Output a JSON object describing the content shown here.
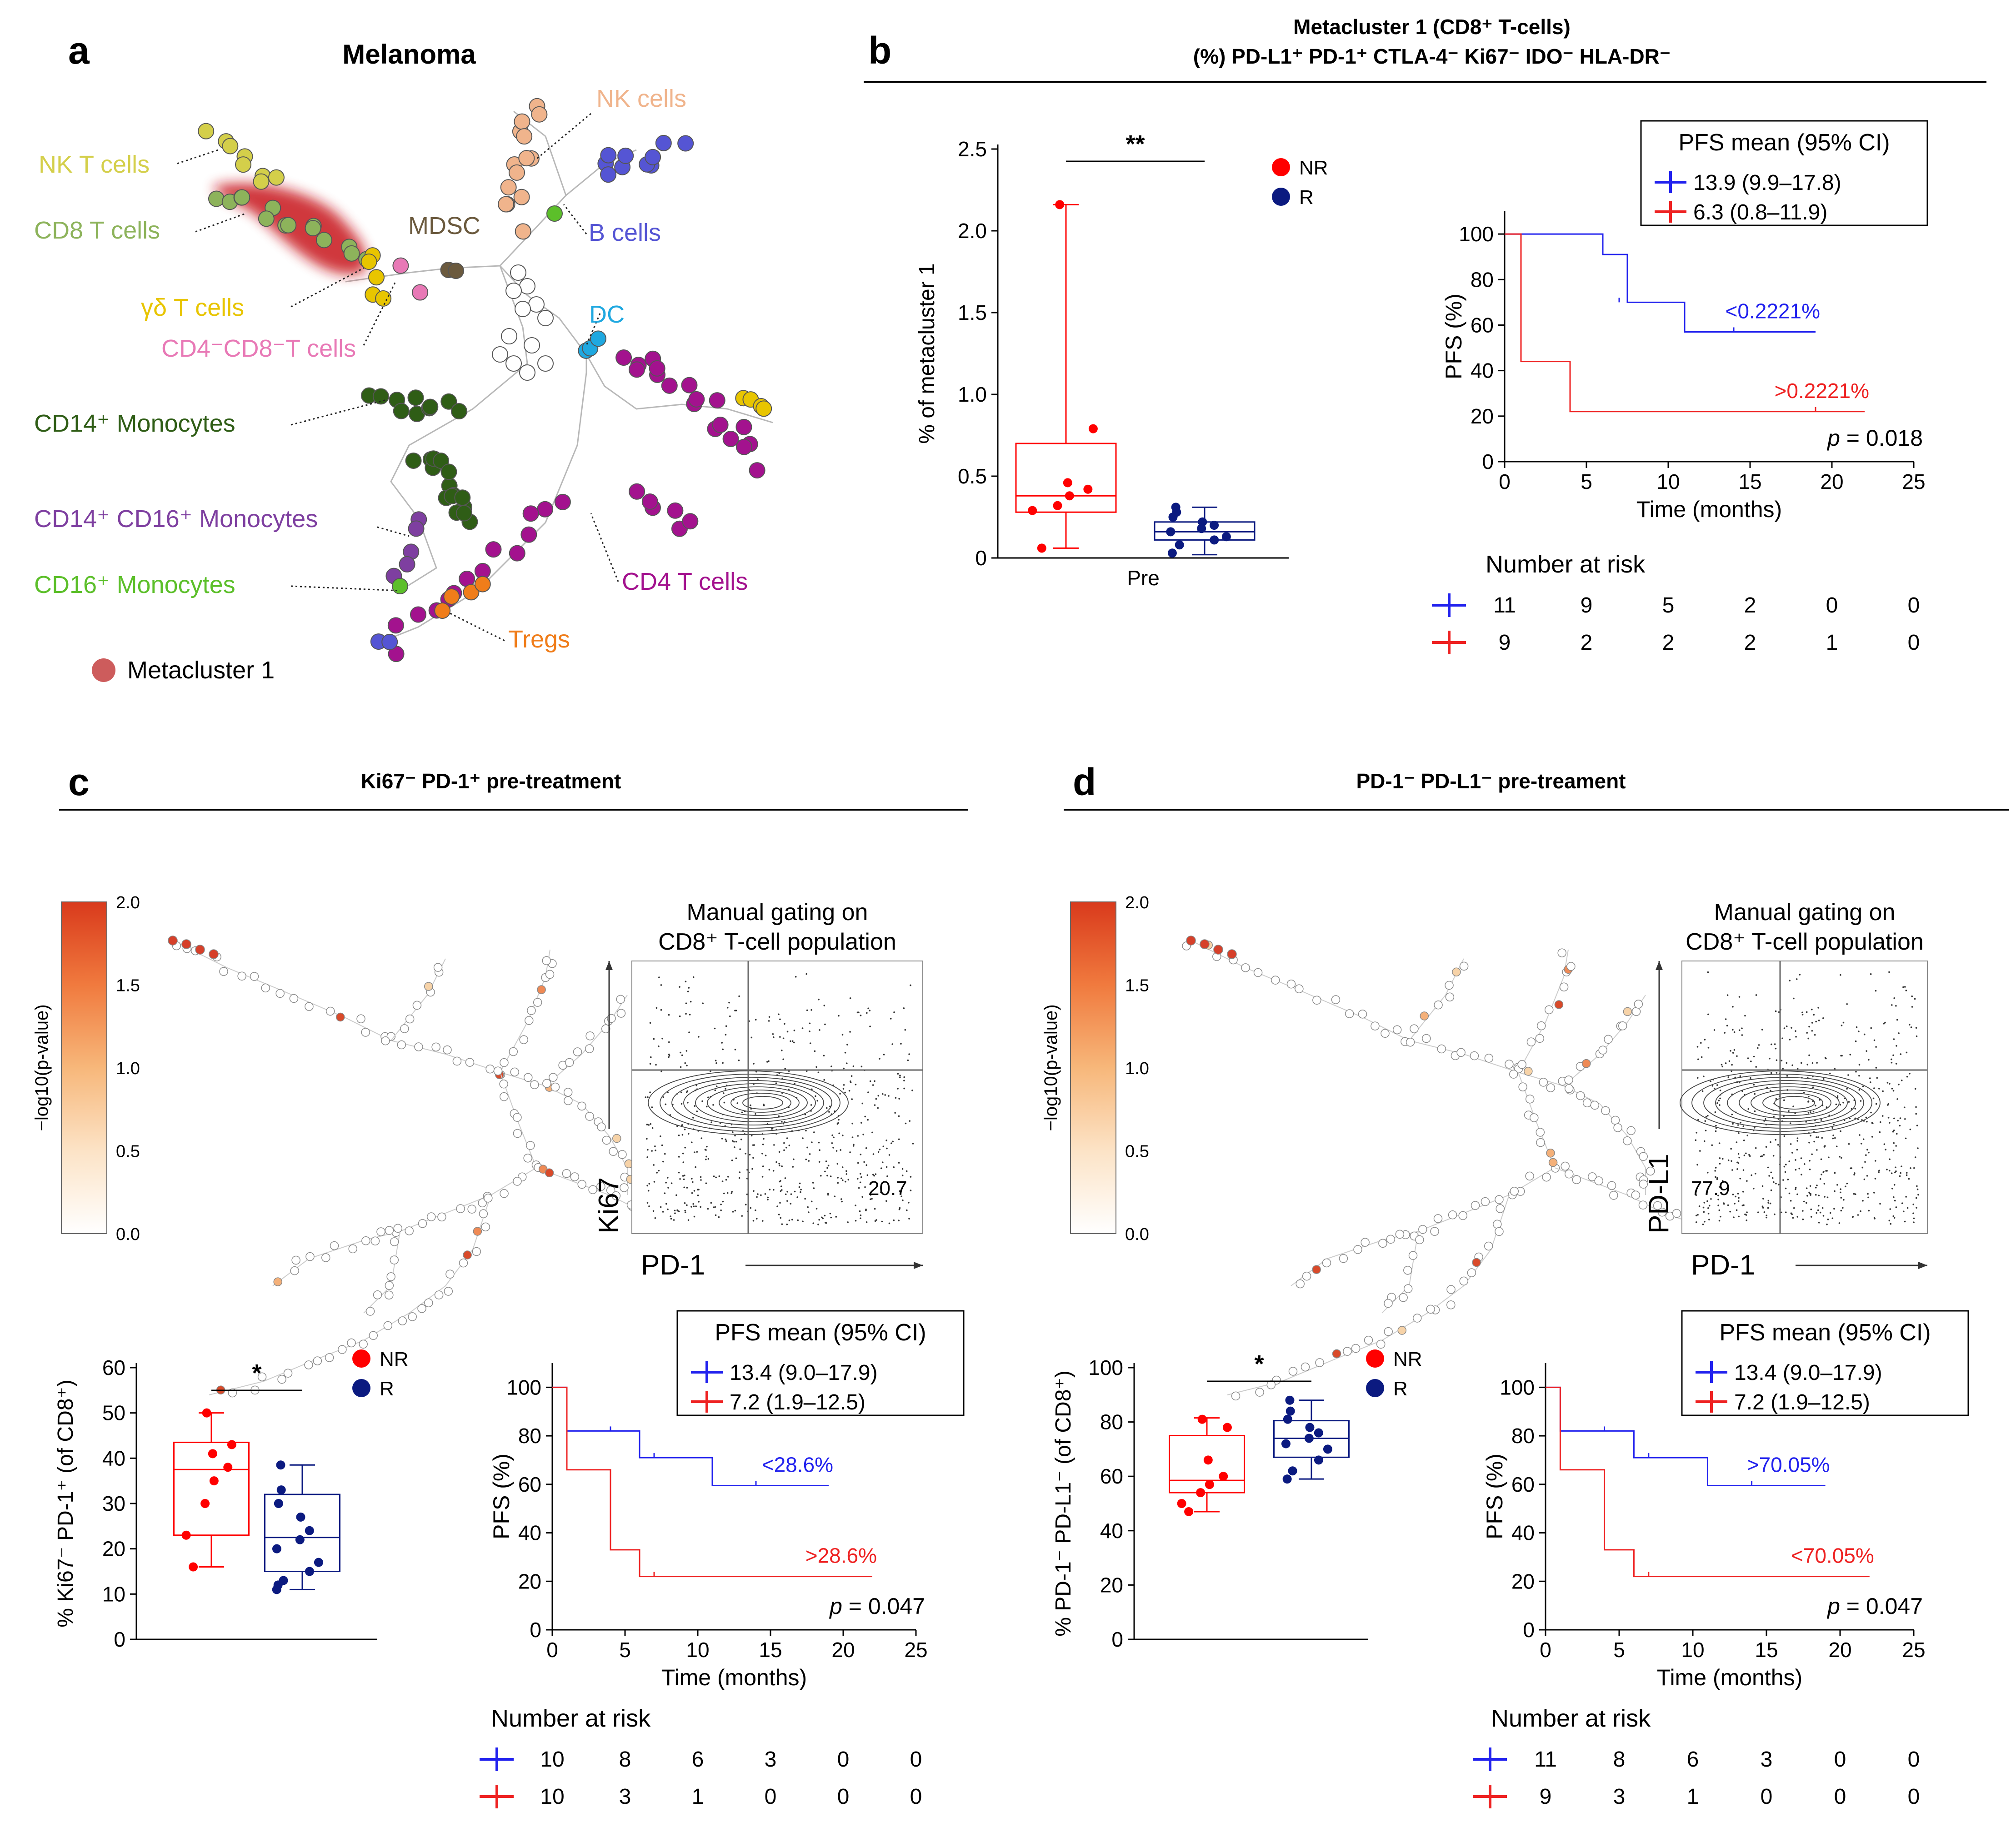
{
  "panel_a": {
    "letter": "a",
    "title": "Melanoma",
    "populations": [
      {
        "label": "NK T cells",
        "color": "#d4cf4a"
      },
      {
        "label": "CD8 T cells",
        "color": "#8db35b"
      },
      {
        "label": "γδ T cells",
        "color": "#e8c500"
      },
      {
        "label": "CD4⁻CD8⁻T cells",
        "color": "#e879b6"
      },
      {
        "label": "MDSC",
        "color": "#6b5a3e"
      },
      {
        "label": "NK cells",
        "color": "#f0b48c"
      },
      {
        "label": "B cells",
        "color": "#5555d4"
      },
      {
        "label": "DC",
        "color": "#1fa8e0"
      },
      {
        "label": "CD14⁺  Monocytes",
        "color": "#2f5d16"
      },
      {
        "label": "CD14⁺  CD16⁺  Monocytes",
        "color": "#7e3fa0"
      },
      {
        "label": "CD16⁺  Monocytes",
        "color": "#5cbf2a"
      },
      {
        "label": "CD4 T cells",
        "color": "#a3128e"
      },
      {
        "label": "Tregs",
        "color": "#f07d1a"
      }
    ],
    "legend": {
      "label": "Metacluster 1",
      "color": "#cd5c5c"
    }
  },
  "panel_b": {
    "letter": "b",
    "title_line1": "Metacluster 1 (CD8⁺ T-cells)",
    "title_line2": "(%) PD-L1⁺ PD-1⁺ CTLA-4⁻ Ki67⁻ IDO⁻ HLA-DR⁻",
    "box": {
      "type": "box",
      "ylabel": "% of metacluster 1",
      "xlabel": "Pre",
      "ylim": [
        0,
        2.5
      ],
      "yticks": [
        "0",
        "0.5",
        "1.0",
        "1.5",
        "2.0",
        "2.5"
      ],
      "significance": "**",
      "legend": [
        {
          "name": "NR",
          "color": "#ff0000"
        },
        {
          "name": "R",
          "color": "#0b1a80"
        }
      ],
      "groups": [
        {
          "name": "NR",
          "color": "#ff0000",
          "min": 0.06,
          "q1": 0.28,
          "median": 0.38,
          "q3": 0.7,
          "max": 2.16,
          "points": [
            2.16,
            0.79,
            0.46,
            0.42,
            0.38,
            0.32,
            0.29,
            0.06
          ]
        },
        {
          "name": "R",
          "color": "#0b1a80",
          "min": 0.02,
          "q1": 0.11,
          "median": 0.16,
          "q3": 0.22,
          "max": 0.31,
          "points": [
            0.31,
            0.28,
            0.25,
            0.22,
            0.2,
            0.18,
            0.16,
            0.13,
            0.11,
            0.08,
            0.03
          ]
        }
      ]
    },
    "km": {
      "type": "line",
      "ylabel": "PFS (%)",
      "xlabel": "Time (months)",
      "xlim": [
        0,
        25
      ],
      "ylim": [
        0,
        110
      ],
      "xticks": [
        "0",
        "5",
        "10",
        "15",
        "20",
        "25"
      ],
      "yticks": [
        "0",
        "20",
        "40",
        "60",
        "80",
        "100"
      ],
      "legend_title": "PFS mean (95% CI)",
      "series": [
        {
          "name": "13.9 (9.9–17.8)",
          "label": "<0.2221%",
          "color": "#2222ee",
          "steps": [
            [
              0,
              100
            ],
            [
              6,
              91
            ],
            [
              7.5,
              70
            ],
            [
              11,
              70
            ],
            [
              11,
              57
            ],
            [
              19,
              57
            ]
          ],
          "censor": [
            [
              7,
              70
            ],
            [
              14,
              57
            ]
          ]
        },
        {
          "name": "6.3 (0.8–11.9)",
          "label": ">0.2221%",
          "color": "#ee2222",
          "steps": [
            [
              0,
              100
            ],
            [
              1,
              44
            ],
            [
              4,
              22
            ],
            [
              22,
              22
            ]
          ],
          "censor": [
            [
              19,
              22
            ]
          ]
        }
      ],
      "p_label": "p",
      "p_value": "= 0.018",
      "risk_title": "Number at risk",
      "risk_rows": [
        {
          "color": "#2222ee",
          "values": [
            "11",
            "9",
            "5",
            "2",
            "0",
            "0"
          ]
        },
        {
          "color": "#ee2222",
          "values": [
            "9",
            "2",
            "2",
            "2",
            "1",
            "0"
          ]
        }
      ]
    }
  },
  "panel_c": {
    "letter": "c",
    "title": "Ki67⁻ PD-1⁺ pre-treatment",
    "colorbar": {
      "label": "−log10(p-value)",
      "ticks": [
        "2.0",
        "1.5",
        "1.0",
        "0.5",
        "0.0"
      ]
    },
    "gating": {
      "title_line1": "Manual gating on",
      "title_line2": "CD8⁺ T-cell population",
      "xlabel": "PD-1",
      "ylabel": "Ki67",
      "value": "20.7"
    },
    "box": {
      "type": "box",
      "ylabel": "% Ki67⁻ PD-1⁺ (of CD8⁺)",
      "ylim": [
        0,
        60
      ],
      "yticks": [
        "0",
        "10",
        "20",
        "30",
        "40",
        "50",
        "60"
      ],
      "significance": "*",
      "legend": [
        {
          "name": "NR",
          "color": "#ff0000"
        },
        {
          "name": "R",
          "color": "#0b1a80"
        }
      ],
      "groups": [
        {
          "name": "NR",
          "color": "#ff0000",
          "min": 16,
          "q1": 23,
          "median": 37.5,
          "q3": 43.5,
          "max": 50,
          "points": [
            50,
            43,
            41,
            38,
            35,
            30,
            23,
            16
          ]
        },
        {
          "name": "R",
          "color": "#0b1a80",
          "min": 11,
          "q1": 15,
          "median": 22.5,
          "q3": 32,
          "max": 38.5,
          "points": [
            38.5,
            33,
            30,
            27,
            24,
            22,
            20,
            17,
            15,
            13,
            12,
            11
          ]
        }
      ]
    },
    "km": {
      "type": "line",
      "ylabel": "PFS (%)",
      "xlabel": "Time (months)",
      "xlim": [
        0,
        25
      ],
      "ylim": [
        0,
        110
      ],
      "xticks": [
        "0",
        "5",
        "10",
        "15",
        "20",
        "25"
      ],
      "yticks": [
        "0",
        "20",
        "40",
        "60",
        "80",
        "100"
      ],
      "legend_title": "PFS mean (95% CI)",
      "series": [
        {
          "name": "13.4 (9.0–17.9)",
          "label": "<28.6%",
          "color": "#2222ee",
          "steps": [
            [
              0,
              100
            ],
            [
              1,
              82
            ],
            [
              6,
              71
            ],
            [
              11,
              59.5
            ],
            [
              19,
              59.5
            ]
          ],
          "censor": [
            [
              4,
              82
            ],
            [
              7,
              71
            ],
            [
              14,
              59.5
            ]
          ]
        },
        {
          "name": "7.2 (1.9–12.5)",
          "label": ">28.6%",
          "color": "#ee2222",
          "steps": [
            [
              0,
              100
            ],
            [
              1,
              66
            ],
            [
              4,
              33
            ],
            [
              6,
              22
            ],
            [
              22,
              22
            ]
          ],
          "censor": [
            [
              7,
              22
            ]
          ]
        }
      ],
      "p_label": "p",
      "p_value": "= 0.047",
      "risk_title": "Number at risk",
      "risk_rows": [
        {
          "color": "#2222ee",
          "values": [
            "10",
            "8",
            "6",
            "3",
            "0",
            "0"
          ]
        },
        {
          "color": "#ee2222",
          "values": [
            "10",
            "3",
            "1",
            "0",
            "0",
            "0"
          ]
        }
      ]
    }
  },
  "panel_d": {
    "letter": "d",
    "title": "PD-1⁻ PD-L1⁻ pre-treament",
    "colorbar": {
      "label": "−log10(p-value)",
      "ticks": [
        "2.0",
        "1.5",
        "1.0",
        "0.5",
        "0.0"
      ]
    },
    "gating": {
      "title_line1": "Manual gating on",
      "title_line2": "CD8⁺ T-cell population",
      "xlabel": "PD-1",
      "ylabel": "PD-L1",
      "value": "77.9"
    },
    "box": {
      "type": "box",
      "ylabel": "% PD-1⁻ PD-L1⁻ (of CD8⁺)",
      "ylim": [
        0,
        100
      ],
      "yticks": [
        "0",
        "20",
        "40",
        "60",
        "80",
        "100"
      ],
      "significance": "*",
      "legend": [
        {
          "name": "NR",
          "color": "#ff0000"
        },
        {
          "name": "R",
          "color": "#0b1a80"
        }
      ],
      "groups": [
        {
          "name": "NR",
          "color": "#ff0000",
          "min": 47,
          "q1": 54,
          "median": 58.5,
          "q3": 75,
          "max": 81.5,
          "points": [
            81,
            78,
            66,
            60,
            57,
            54,
            50,
            47
          ]
        },
        {
          "name": "R",
          "color": "#0b1a80",
          "min": 59,
          "q1": 67,
          "median": 74,
          "q3": 80.5,
          "max": 88,
          "points": [
            88,
            84,
            81,
            78,
            76,
            74,
            72,
            70,
            66,
            62,
            59
          ]
        }
      ]
    },
    "km": {
      "type": "line",
      "ylabel": "PFS (%)",
      "xlabel": "Time (months)",
      "xlim": [
        0,
        25
      ],
      "ylim": [
        0,
        110
      ],
      "xticks": [
        "0",
        "5",
        "10",
        "15",
        "20",
        "25"
      ],
      "yticks": [
        "0",
        "20",
        "40",
        "60",
        "80",
        "100"
      ],
      "legend_title": "PFS mean (95% CI)",
      "series": [
        {
          "name": "13.4 (9.0–17.9)",
          "label": ">70.05%",
          "color": "#2222ee",
          "steps": [
            [
              0,
              100
            ],
            [
              1,
              82
            ],
            [
              6,
              71
            ],
            [
              11,
              59.5
            ],
            [
              19,
              59.5
            ]
          ],
          "censor": [
            [
              4,
              82
            ],
            [
              7,
              71
            ],
            [
              14,
              59.5
            ]
          ]
        },
        {
          "name": "7.2 (1.9–12.5)",
          "label": "<70.05%",
          "color": "#ee2222",
          "steps": [
            [
              0,
              100
            ],
            [
              1,
              66
            ],
            [
              4,
              33
            ],
            [
              6,
              22
            ],
            [
              22,
              22
            ]
          ],
          "censor": [
            [
              7,
              22
            ]
          ]
        }
      ],
      "p_label": "p",
      "p_value": "= 0.047",
      "risk_title": "Number at risk",
      "risk_rows": [
        {
          "color": "#2222ee",
          "values": [
            "11",
            "8",
            "6",
            "3",
            "0",
            "0"
          ]
        },
        {
          "color": "#ee2222",
          "values": [
            "9",
            "3",
            "1",
            "0",
            "0",
            "0"
          ]
        }
      ]
    }
  },
  "chart_data": [
    {
      "type": "scatter",
      "title": "Melanoma",
      "note": "FlowSOM minimum spanning tree; 13 labelled cell populations; Metacluster 1 highlighted on CD8 T cells"
    },
    {
      "type": "box",
      "title": "Metacluster 1 (CD8⁺ T-cells)",
      "ylabel": "% of metacluster 1",
      "categories": [
        "Pre"
      ],
      "ylim": [
        0,
        2.5
      ],
      "series": [
        {
          "name": "NR",
          "median": 0.38,
          "q1": 0.28,
          "q3": 0.7,
          "min": 0.06,
          "max": 2.16
        },
        {
          "name": "R",
          "median": 0.16,
          "q1": 0.11,
          "q3": 0.22,
          "min": 0.02,
          "max": 0.31
        }
      ]
    },
    {
      "type": "line",
      "title": "PFS (panel b)",
      "xlabel": "Time (months)",
      "ylabel": "PFS (%)",
      "series": [
        {
          "name": "<0.2221%",
          "x": [
            0,
            6,
            11,
            19
          ],
          "y": [
            100,
            91,
            57,
            57
          ]
        },
        {
          "name": ">0.2221%",
          "x": [
            0,
            1,
            4,
            22
          ],
          "y": [
            100,
            44,
            22,
            22
          ]
        }
      ],
      "p": 0.018
    },
    {
      "type": "box",
      "title": "Ki67⁻ PD-1⁺ pre-treatment",
      "ylabel": "% Ki67⁻ PD-1⁺ (of CD8⁺)",
      "ylim": [
        0,
        60
      ],
      "series": [
        {
          "name": "NR",
          "median": 37.5,
          "q1": 23,
          "q3": 43.5,
          "min": 16,
          "max": 50
        },
        {
          "name": "R",
          "median": 22.5,
          "q1": 15,
          "q3": 32,
          "min": 11,
          "max": 38.5
        }
      ]
    },
    {
      "type": "line",
      "title": "PFS (panel c)",
      "xlabel": "Time (months)",
      "ylabel": "PFS (%)",
      "series": [
        {
          "name": "<28.6%",
          "x": [
            0,
            1,
            6,
            11,
            19
          ],
          "y": [
            100,
            82,
            71,
            59.5,
            59.5
          ]
        },
        {
          "name": ">28.6%",
          "x": [
            0,
            1,
            4,
            6,
            22
          ],
          "y": [
            100,
            66,
            33,
            22,
            22
          ]
        }
      ],
      "p": 0.047
    },
    {
      "type": "box",
      "title": "PD-1⁻ PD-L1⁻ pre-treament",
      "ylabel": "% PD-1⁻ PD-L1⁻ (of CD8⁺)",
      "ylim": [
        0,
        100
      ],
      "series": [
        {
          "name": "NR",
          "median": 58.5,
          "q1": 54,
          "q3": 75,
          "min": 47,
          "max": 81.5
        },
        {
          "name": "R",
          "median": 74,
          "q1": 67,
          "q3": 80.5,
          "min": 59,
          "max": 88
        }
      ]
    },
    {
      "type": "line",
      "title": "PFS (panel d)",
      "xlabel": "Time (months)",
      "ylabel": "PFS (%)",
      "series": [
        {
          "name": ">70.05%",
          "x": [
            0,
            1,
            6,
            11,
            19
          ],
          "y": [
            100,
            82,
            71,
            59.5,
            59.5
          ]
        },
        {
          "name": "<70.05%",
          "x": [
            0,
            1,
            4,
            6,
            22
          ],
          "y": [
            100,
            66,
            33,
            22,
            22
          ]
        }
      ],
      "p": 0.047
    }
  ]
}
